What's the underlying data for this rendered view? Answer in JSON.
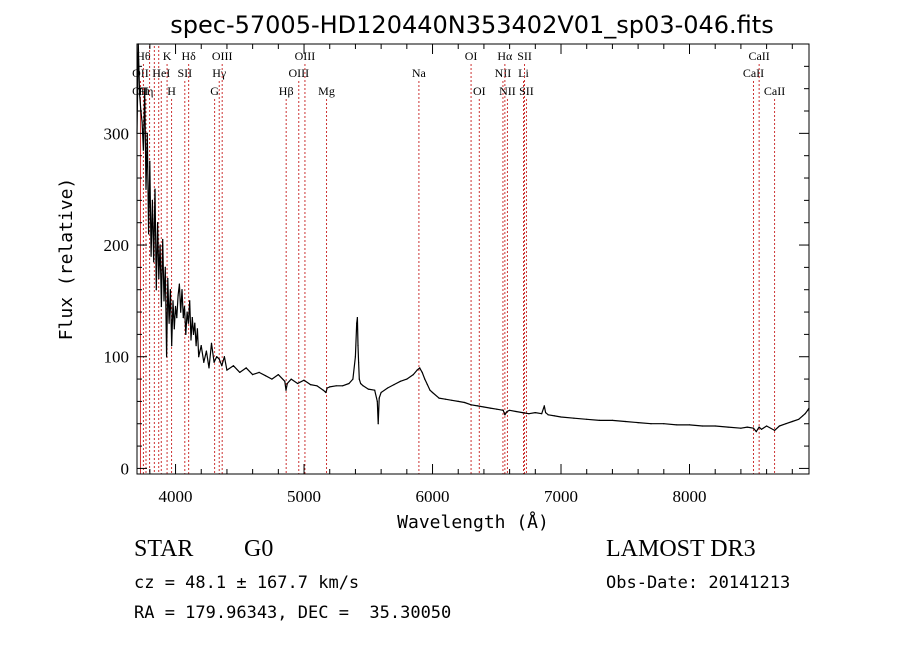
{
  "chart_data": {
    "type": "line",
    "title": "spec-57005-HD120440N353402V01_sp03-046.fits",
    "xlabel": "Wavelength (Å)",
    "ylabel": "Flux (relative)",
    "xlim": [
      3700,
      8930
    ],
    "ylim": [
      -5,
      380
    ],
    "xticks": [
      4000,
      5000,
      6000,
      7000,
      8000
    ],
    "xtick_labels": [
      "4000",
      "5000",
      "6000",
      "7000",
      "8000"
    ],
    "yticks": [
      0,
      100,
      200,
      300
    ],
    "ytick_labels": [
      "0",
      "100",
      "200",
      "300"
    ],
    "series": [
      {
        "name": "spectrum",
        "color": "#000000",
        "x": [
          3700,
          3710,
          3720,
          3730,
          3740,
          3750,
          3760,
          3770,
          3780,
          3790,
          3800,
          3810,
          3820,
          3830,
          3840,
          3850,
          3860,
          3870,
          3880,
          3890,
          3900,
          3910,
          3920,
          3930,
          3940,
          3950,
          3960,
          3970,
          3980,
          3990,
          4000,
          4010,
          4020,
          4030,
          4040,
          4050,
          4060,
          4070,
          4080,
          4090,
          4100,
          4110,
          4120,
          4130,
          4140,
          4150,
          4160,
          4170,
          4180,
          4200,
          4220,
          4240,
          4260,
          4280,
          4300,
          4320,
          4340,
          4360,
          4380,
          4400,
          4450,
          4500,
          4550,
          4600,
          4650,
          4700,
          4750,
          4800,
          4850,
          4860,
          4870,
          4900,
          4950,
          5000,
          5050,
          5100,
          5150,
          5170,
          5180,
          5200,
          5250,
          5300,
          5350,
          5380,
          5400,
          5410,
          5415,
          5420,
          5425,
          5430,
          5440,
          5460,
          5500,
          5550,
          5570,
          5577,
          5585,
          5600,
          5650,
          5700,
          5750,
          5800,
          5850,
          5880,
          5900,
          5920,
          5940,
          5960,
          5980,
          6000,
          6050,
          6100,
          6150,
          6200,
          6250,
          6300,
          6350,
          6400,
          6450,
          6500,
          6550,
          6563,
          6580,
          6600,
          6650,
          6700,
          6750,
          6800,
          6850,
          6870,
          6880,
          6900,
          6950,
          7000,
          7100,
          7200,
          7300,
          7400,
          7500,
          7600,
          7700,
          7800,
          7900,
          8000,
          8100,
          8200,
          8300,
          8400,
          8450,
          8498,
          8520,
          8542,
          8560,
          8600,
          8662,
          8700,
          8750,
          8800,
          8850,
          8880,
          8900,
          8920,
          8930
        ],
        "values": [
          300,
          380,
          335,
          320,
          310,
          285,
          340,
          250,
          300,
          210,
          275,
          190,
          240,
          185,
          250,
          160,
          220,
          170,
          200,
          145,
          205,
          150,
          180,
          100,
          170,
          130,
          160,
          110,
          150,
          125,
          145,
          135,
          155,
          165,
          140,
          160,
          135,
          145,
          120,
          140,
          130,
          150,
          115,
          135,
          120,
          130,
          110,
          125,
          100,
          110,
          95,
          105,
          90,
          112,
          95,
          100,
          98,
          92,
          100,
          88,
          92,
          86,
          90,
          84,
          86,
          83,
          80,
          84,
          78,
          70,
          76,
          80,
          76,
          79,
          75,
          74,
          70,
          68,
          72,
          73,
          74,
          74,
          76,
          80,
          100,
          130,
          135,
          110,
          95,
          80,
          76,
          74,
          71,
          70,
          60,
          40,
          63,
          68,
          72,
          75,
          78,
          80,
          84,
          88,
          90,
          86,
          80,
          75,
          70,
          68,
          63,
          62,
          61,
          60,
          59,
          57,
          56,
          55,
          54,
          53,
          52,
          48,
          51,
          52,
          51,
          50,
          49,
          50,
          49,
          56,
          50,
          48,
          47,
          46,
          45,
          44,
          43,
          43,
          42,
          41,
          40,
          40,
          39,
          39,
          38,
          38,
          37,
          36,
          37,
          36,
          33,
          37,
          35,
          38,
          34,
          38,
          40,
          42,
          44,
          47,
          49,
          52,
          54
        ]
      }
    ],
    "line_markers": [
      {
        "wavelength": 3727,
        "label": "OII",
        "row": 1
      },
      {
        "wavelength": 3727,
        "label": "OII",
        "row": 2
      },
      {
        "wavelength": 3750,
        "label": "Hθ",
        "row": 0
      },
      {
        "wavelength": 3770,
        "label": "Hη",
        "row": 2
      },
      {
        "wavelength": 3798,
        "label": "",
        "row": -1
      },
      {
        "wavelength": 3835,
        "label": "",
        "row": -1
      },
      {
        "wavelength": 3869,
        "label": "",
        "row": -1
      },
      {
        "wavelength": 3889,
        "label": "HeI",
        "row": 1
      },
      {
        "wavelength": 3934,
        "label": "K",
        "row": 0
      },
      {
        "wavelength": 3969,
        "label": "H",
        "row": 2
      },
      {
        "wavelength": 4072,
        "label": "SII",
        "row": 1
      },
      {
        "wavelength": 4102,
        "label": "Hδ",
        "row": 0
      },
      {
        "wavelength": 4304,
        "label": "G",
        "row": 2
      },
      {
        "wavelength": 4340,
        "label": "Hγ",
        "row": 1
      },
      {
        "wavelength": 4363,
        "label": "OIII",
        "row": 0
      },
      {
        "wavelength": 4861,
        "label": "Hβ",
        "row": 2
      },
      {
        "wavelength": 4959,
        "label": "OIII",
        "row": 1
      },
      {
        "wavelength": 5007,
        "label": "OIII",
        "row": 0
      },
      {
        "wavelength": 5175,
        "label": "Mg",
        "row": 2
      },
      {
        "wavelength": 5894,
        "label": "Na",
        "row": 1
      },
      {
        "wavelength": 6300,
        "label": "OI",
        "row": 0
      },
      {
        "wavelength": 6364,
        "label": "OI",
        "row": 2
      },
      {
        "wavelength": 6548,
        "label": "NII",
        "row": 1
      },
      {
        "wavelength": 6563,
        "label": "Hα",
        "row": 0
      },
      {
        "wavelength": 6583,
        "label": "NII",
        "row": 2
      },
      {
        "wavelength": 6708,
        "label": "Li",
        "row": 1
      },
      {
        "wavelength": 6716,
        "label": "SII",
        "row": 0
      },
      {
        "wavelength": 6731,
        "label": "SII",
        "row": 2
      },
      {
        "wavelength": 8498,
        "label": "CaII",
        "row": 1
      },
      {
        "wavelength": 8542,
        "label": "CaII",
        "row": 0
      },
      {
        "wavelength": 8662,
        "label": "CaII",
        "row": 2
      }
    ],
    "marker_color": "#cc3333"
  },
  "info": {
    "object_class": "STAR",
    "subclass": "G0",
    "survey": "LAMOST DR3",
    "redshift": "cz = 48.1 ± 167.7 km/s",
    "obs_date": "Obs-Date: 20141213",
    "coords": "RA = 179.96343, DEC =  35.30050"
  }
}
